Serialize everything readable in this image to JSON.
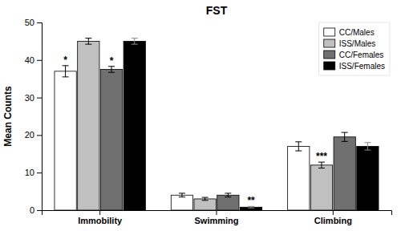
{
  "chart_data": {
    "type": "bar",
    "title": "FST",
    "y_label": "Mean Counts",
    "categories": [
      "Immobility",
      "Swimming",
      "Climbing"
    ],
    "series": [
      {
        "name": "CC/Males",
        "color": "#ffffff",
        "values": [
          37.0,
          4.0,
          17.0
        ],
        "errors": [
          1.5,
          0.5,
          1.2
        ]
      },
      {
        "name": "ISS/Males",
        "color": "#c0c0c0",
        "values": [
          45.0,
          3.0,
          12.0
        ],
        "errors": [
          0.8,
          0.4,
          0.8
        ]
      },
      {
        "name": "CC/Females",
        "color": "#707070",
        "values": [
          37.5,
          4.0,
          19.5
        ],
        "errors": [
          0.8,
          0.5,
          1.2
        ]
      },
      {
        "name": "ISS/Females",
        "color": "#000000",
        "values": [
          45.0,
          0.8,
          17.0
        ],
        "errors": [
          0.8,
          0.2,
          1.0
        ]
      }
    ],
    "annotations": [
      {
        "category": "Immobility",
        "series": "CC/Males",
        "text": "*"
      },
      {
        "category": "Immobility",
        "series": "CC/Females",
        "text": "*"
      },
      {
        "category": "Swimming",
        "series": "ISS/Females",
        "text": "**"
      },
      {
        "category": "Climbing",
        "series": "ISS/Males",
        "text": "***"
      }
    ],
    "ylim": [
      0,
      50
    ],
    "yticks": [
      0,
      10,
      20,
      30,
      40,
      50
    ],
    "grid": false,
    "legend": "upper right"
  }
}
